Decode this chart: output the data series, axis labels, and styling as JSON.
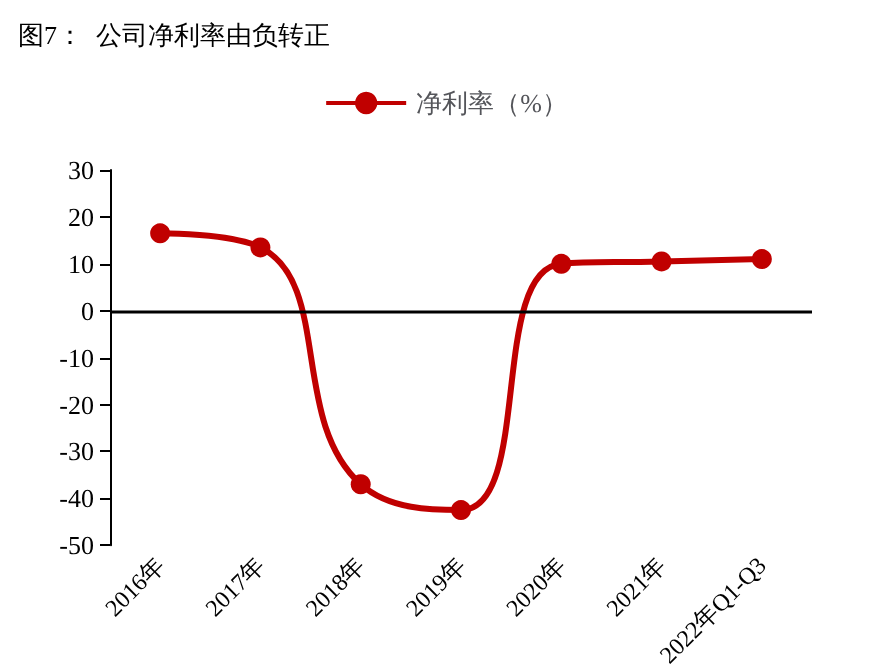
{
  "chart_data": {
    "type": "line",
    "title": "图7：  公司净利率由负转正",
    "categories": [
      "2016年",
      "2017年",
      "2018年",
      "2019年",
      "2020年",
      "2021年",
      "2022年Q1-Q3"
    ],
    "series": [
      {
        "name": "净利率（%）",
        "color": "#c00000",
        "values": [
          16.5,
          13.5,
          -37,
          -42.5,
          10,
          10.5,
          11
        ]
      }
    ],
    "ylim": [
      -50,
      30
    ],
    "yticks": [
      -50,
      -40,
      -30,
      -20,
      -10,
      0,
      10,
      20,
      30
    ],
    "ref_lines": [
      {
        "axis": "y",
        "value": 0,
        "color": "#000000",
        "line_style": "solid"
      }
    ],
    "grid": false,
    "legend": "top",
    "marker": "circle",
    "line_style": "solid"
  }
}
